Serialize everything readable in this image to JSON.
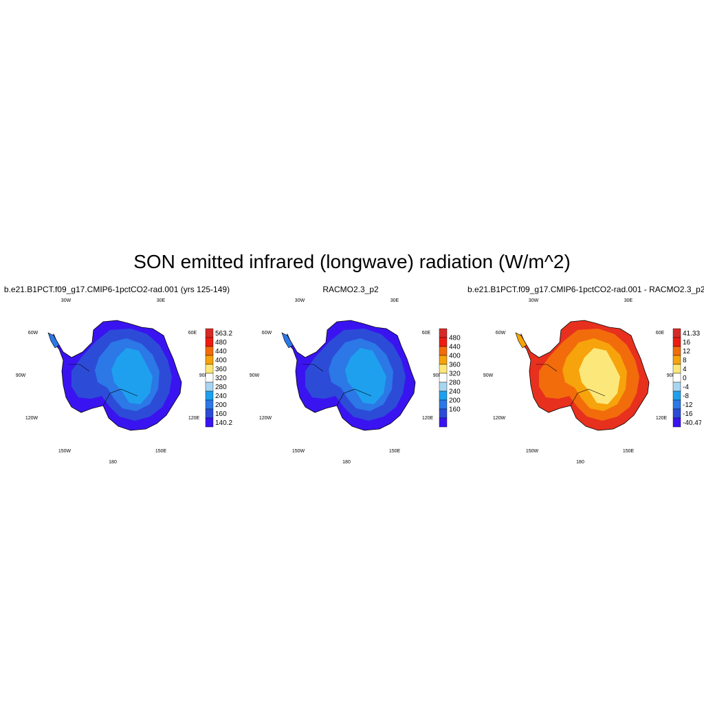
{
  "title": "SON emitted infrared (longwave) radiation (W/m^2)",
  "panels": [
    {
      "title": "b.e21.B1PCT.f09_g17.CMIP6-1pctCO2-rad.001 (yrs 125-149)",
      "lon_labels": [
        "30W",
        "30E",
        "60W",
        "60E",
        "90W",
        "90E",
        "120W",
        "120E",
        "150W",
        "150E",
        "180"
      ],
      "colorbar": {
        "labels": [
          "563.2",
          "480",
          "440",
          "400",
          "360",
          "320",
          "280",
          "240",
          "200",
          "160",
          "140.2"
        ],
        "colors": [
          "#d62a27",
          "#ee1c10",
          "#f26c0c",
          "#f6a30c",
          "#fce87a",
          "#ffffff",
          "#a8d6f0",
          "#1ea0ee",
          "#2b78e6",
          "#2c4cd8",
          "#3a14f0"
        ]
      },
      "map_colors": [
        "#3a14f0",
        "#2c4cd8",
        "#2b78e6",
        "#1ea0ee"
      ]
    },
    {
      "title": "RACMO2.3_p2",
      "lon_labels": [
        "30W",
        "30E",
        "60W",
        "60E",
        "90W",
        "90E",
        "120W",
        "120E",
        "150W",
        "150E",
        "180"
      ],
      "colorbar": {
        "labels": [
          "480",
          "440",
          "400",
          "360",
          "320",
          "280",
          "240",
          "200",
          "160"
        ],
        "colors": [
          "#d62a27",
          "#ee1c10",
          "#f26c0c",
          "#f6a30c",
          "#fce87a",
          "#ffffff",
          "#a8d6f0",
          "#1ea0ee",
          "#2b78e6",
          "#2c4cd8",
          "#3a14f0"
        ]
      },
      "map_colors": [
        "#3a14f0",
        "#2c4cd8",
        "#2b78e6",
        "#1ea0ee"
      ]
    },
    {
      "title": "b.e21.B1PCT.f09_g17.CMIP6-1pctCO2-rad.001 - RACMO2.3_p2",
      "lon_labels": [
        "30W",
        "30E",
        "60W",
        "60E",
        "90W",
        "90E",
        "120W",
        "120E",
        "150W",
        "150E",
        "180"
      ],
      "colorbar": {
        "labels": [
          "41.33",
          "16",
          "12",
          "8",
          "4",
          "0",
          "-4",
          "-8",
          "-12",
          "-16",
          "-40.47"
        ],
        "colors": [
          "#d62a27",
          "#ee1c10",
          "#f26c0c",
          "#f6a30c",
          "#fce87a",
          "#ffffff",
          "#a8d6f0",
          "#1ea0ee",
          "#2b78e6",
          "#2c4cd8",
          "#3a14f0"
        ]
      },
      "map_colors": [
        "#e8301e",
        "#f26c0c",
        "#f6a30c",
        "#fce87a"
      ]
    }
  ]
}
